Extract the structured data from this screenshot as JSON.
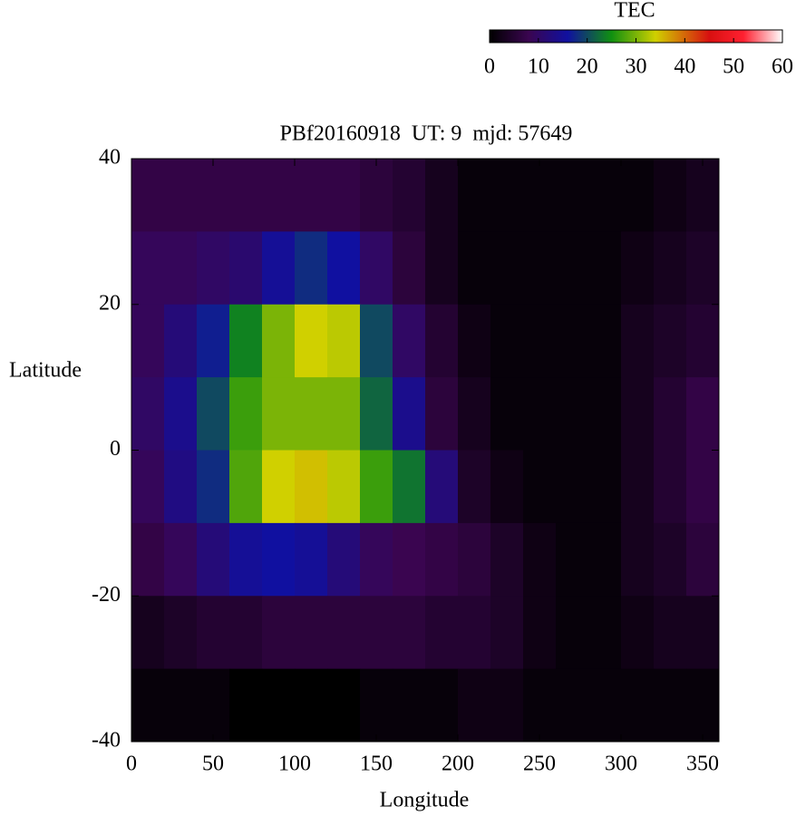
{
  "chart_data": {
    "type": "heatmap",
    "title": "PBf20160918  UT: 9  mjd: 57649",
    "xlabel": "Longitude",
    "ylabel": "Latitude",
    "xlim": [
      0,
      360
    ],
    "ylim": [
      -40,
      40
    ],
    "xticks": [
      0,
      50,
      100,
      150,
      200,
      250,
      300,
      350
    ],
    "yticks": [
      -40,
      -20,
      0,
      20,
      40
    ],
    "xbins": [
      0,
      20,
      40,
      60,
      80,
      100,
      120,
      140,
      160,
      180,
      200,
      220,
      240,
      260,
      280,
      300,
      320,
      340,
      360
    ],
    "ybins": [
      40,
      30,
      20,
      10,
      0,
      -10,
      -20,
      -30,
      -40
    ],
    "z": [
      [
        7,
        7,
        7,
        7,
        7,
        7,
        7,
        6,
        5,
        3,
        1,
        1,
        1,
        1,
        1,
        1,
        2,
        3
      ],
      [
        9,
        9,
        10,
        11,
        15,
        18,
        16,
        10,
        6,
        3,
        1,
        1,
        1,
        1,
        1,
        2,
        3,
        4
      ],
      [
        9,
        12,
        17,
        24,
        30,
        34,
        33,
        20,
        10,
        5,
        2,
        1,
        1,
        1,
        1,
        3,
        4,
        5
      ],
      [
        10,
        14,
        20,
        27,
        30,
        30,
        30,
        22,
        14,
        6,
        3,
        1,
        1,
        1,
        1,
        3,
        5,
        7
      ],
      [
        9,
        13,
        18,
        28,
        34,
        35,
        33,
        27,
        23,
        12,
        4,
        2,
        1,
        1,
        1,
        3,
        5,
        7
      ],
      [
        7,
        9,
        12,
        15,
        16,
        15,
        12,
        9,
        8,
        7,
        6,
        4,
        2,
        1,
        1,
        3,
        4,
        6
      ],
      [
        3,
        4,
        5,
        5,
        6,
        6,
        6,
        6,
        6,
        5,
        5,
        4,
        2,
        1,
        1,
        2,
        3,
        3
      ],
      [
        1,
        1,
        1,
        0,
        0,
        0,
        0,
        1,
        1,
        1,
        2,
        2,
        1,
        1,
        1,
        1,
        1,
        1
      ]
    ],
    "colorbar": {
      "label": "TEC",
      "lim": [
        0,
        60
      ],
      "ticks": [
        0,
        10,
        20,
        30,
        40,
        50,
        60
      ]
    },
    "colormap": [
      {
        "value": 0,
        "color": "#000000"
      },
      {
        "value": 8,
        "color": "#3a0550"
      },
      {
        "value": 16,
        "color": "#1010a0"
      },
      {
        "value": 25,
        "color": "#109010"
      },
      {
        "value": 34,
        "color": "#d0d000"
      },
      {
        "value": 45,
        "color": "#d81010"
      },
      {
        "value": 52,
        "color": "#ff2030"
      },
      {
        "value": 60,
        "color": "#ffffff"
      }
    ]
  }
}
